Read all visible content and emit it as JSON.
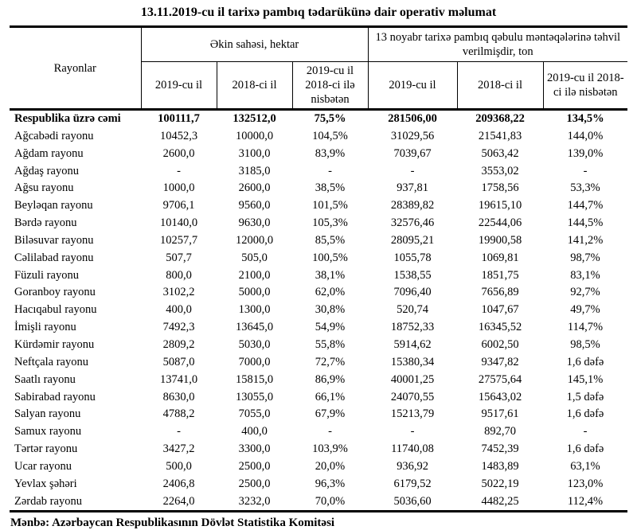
{
  "title": "13.11.2019-cu il tarixə pambıq tədarükünə dair operativ məlumat",
  "table": {
    "region_header": "Rayonlar",
    "group1_header": "Əkin sahəsi, hektar",
    "group2_header": "13 noyabr tarixə pambıq qəbulu məntəqələrinə təhvil verilmişdir, ton",
    "sub_headers": [
      "2019-cu il",
      "2018-ci il",
      "2019-cu il 2018-ci ilə nisbətən",
      "2019-cu il",
      "2018-ci il",
      "2019-cu il 2018-ci ilə nisbətən"
    ],
    "total_row": {
      "name": "Respublika üzrə cəmi",
      "values": [
        "100111,7",
        "132512,0",
        "75,5%",
        "281506,00",
        "209368,22",
        "134,5%"
      ]
    },
    "rows": [
      {
        "name": "Ağcabədi rayonu",
        "values": [
          "10452,3",
          "10000,0",
          "104,5%",
          "31029,56",
          "21541,83",
          "144,0%"
        ]
      },
      {
        "name": "Ağdam rayonu",
        "values": [
          "2600,0",
          "3100,0",
          "83,9%",
          "7039,67",
          "5063,42",
          "139,0%"
        ]
      },
      {
        "name": "Ağdaş rayonu",
        "values": [
          "-",
          "3185,0",
          "-",
          "-",
          "3553,02",
          "-"
        ]
      },
      {
        "name": "Ağsu rayonu",
        "values": [
          "1000,0",
          "2600,0",
          "38,5%",
          "937,81",
          "1758,56",
          "53,3%"
        ]
      },
      {
        "name": "Beyləqan rayonu",
        "values": [
          "9706,1",
          "9560,0",
          "101,5%",
          "28389,82",
          "19615,10",
          "144,7%"
        ]
      },
      {
        "name": "Bərdə rayonu",
        "values": [
          "10140,0",
          "9630,0",
          "105,3%",
          "32576,46",
          "22544,06",
          "144,5%"
        ]
      },
      {
        "name": "Biləsuvar rayonu",
        "values": [
          "10257,7",
          "12000,0",
          "85,5%",
          "28095,21",
          "19900,58",
          "141,2%"
        ]
      },
      {
        "name": "Cəlilabad rayonu",
        "values": [
          "507,7",
          "505,0",
          "100,5%",
          "1055,78",
          "1069,81",
          "98,7%"
        ]
      },
      {
        "name": "Füzuli rayonu",
        "values": [
          "800,0",
          "2100,0",
          "38,1%",
          "1538,55",
          "1851,75",
          "83,1%"
        ]
      },
      {
        "name": "Goranboy rayonu",
        "values": [
          "3102,2",
          "5000,0",
          "62,0%",
          "7096,40",
          "7656,89",
          "92,7%"
        ]
      },
      {
        "name": "Hacıqabul rayonu",
        "values": [
          "400,0",
          "1300,0",
          "30,8%",
          "520,74",
          "1047,67",
          "49,7%"
        ]
      },
      {
        "name": "İmişli rayonu",
        "values": [
          "7492,3",
          "13645,0",
          "54,9%",
          "18752,33",
          "16345,52",
          "114,7%"
        ]
      },
      {
        "name": "Kürdəmir rayonu",
        "values": [
          "2809,2",
          "5030,0",
          "55,8%",
          "5914,62",
          "6002,50",
          "98,5%"
        ]
      },
      {
        "name": "Neftçala rayonu",
        "values": [
          "5087,0",
          "7000,0",
          "72,7%",
          "15380,34",
          "9347,82",
          "1,6 dəfə"
        ]
      },
      {
        "name": "Saatlı rayonu",
        "values": [
          "13741,0",
          "15815,0",
          "86,9%",
          "40001,25",
          "27575,64",
          "145,1%"
        ]
      },
      {
        "name": "Sabirabad rayonu",
        "values": [
          "8630,0",
          "13055,0",
          "66,1%",
          "24070,55",
          "15643,02",
          "1,5 dəfə"
        ]
      },
      {
        "name": "Salyan rayonu",
        "values": [
          "4788,2",
          "7055,0",
          "67,9%",
          "15213,79",
          "9517,61",
          "1,6 dəfə"
        ]
      },
      {
        "name": "Samux rayonu",
        "values": [
          "-",
          "400,0",
          "-",
          "-",
          "892,70",
          "-"
        ]
      },
      {
        "name": "Tərtər rayonu",
        "values": [
          "3427,2",
          "3300,0",
          "103,9%",
          "11740,08",
          "7452,39",
          "1,6 dəfə"
        ]
      },
      {
        "name": "Ucar rayonu",
        "values": [
          "500,0",
          "2500,0",
          "20,0%",
          "936,92",
          "1483,89",
          "63,1%"
        ]
      },
      {
        "name": "Yevlax şəhəri",
        "values": [
          "2406,8",
          "2500,0",
          "96,3%",
          "6179,52",
          "5022,19",
          "123,0%"
        ]
      },
      {
        "name": "Zərdab rayonu",
        "values": [
          "2264,0",
          "3232,0",
          "70,0%",
          "5036,60",
          "4482,25",
          "112,4%"
        ]
      }
    ]
  },
  "footer": "Mənbə: Azərbaycan Respublikasının Dövlət Statistika Komitəsi"
}
